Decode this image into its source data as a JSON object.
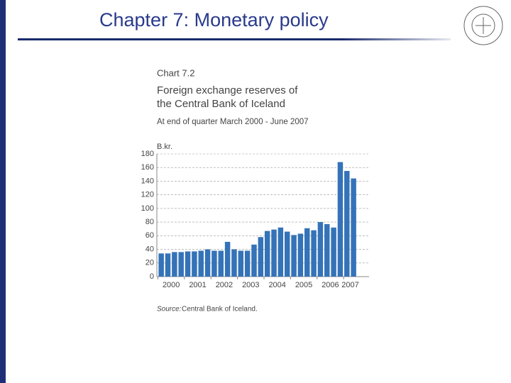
{
  "slide_title": "Chapter 7: Monetary policy",
  "chart_data": {
    "type": "bar",
    "label": "Chart 7.2",
    "title": [
      "Foreign exchange reserves of",
      "the Central Bank of Iceland"
    ],
    "subtitle": "At end of quarter March 2000 - June 2007",
    "y_label": "B.kr.",
    "source_label": "Source:",
    "source": "Central Bank of Iceland.",
    "categories": [
      "2000",
      null,
      null,
      null,
      "2001",
      null,
      null,
      null,
      "2002",
      null,
      null,
      null,
      "2003",
      null,
      null,
      null,
      "2004",
      null,
      null,
      null,
      "2005",
      null,
      null,
      null,
      "2006",
      null,
      null,
      null,
      "2007",
      null
    ],
    "values": [
      34,
      34,
      36,
      36,
      37,
      37,
      38,
      40,
      38,
      38,
      51,
      40,
      38,
      38,
      47,
      58,
      67,
      69,
      72,
      66,
      61,
      63,
      71,
      68,
      80,
      77,
      72,
      168,
      155,
      144
    ],
    "color": "#3573b8",
    "ylim": [
      0,
      180
    ],
    "yticks": [
      0,
      20,
      40,
      60,
      80,
      100,
      120,
      140,
      160,
      180
    ],
    "grid": true
  }
}
